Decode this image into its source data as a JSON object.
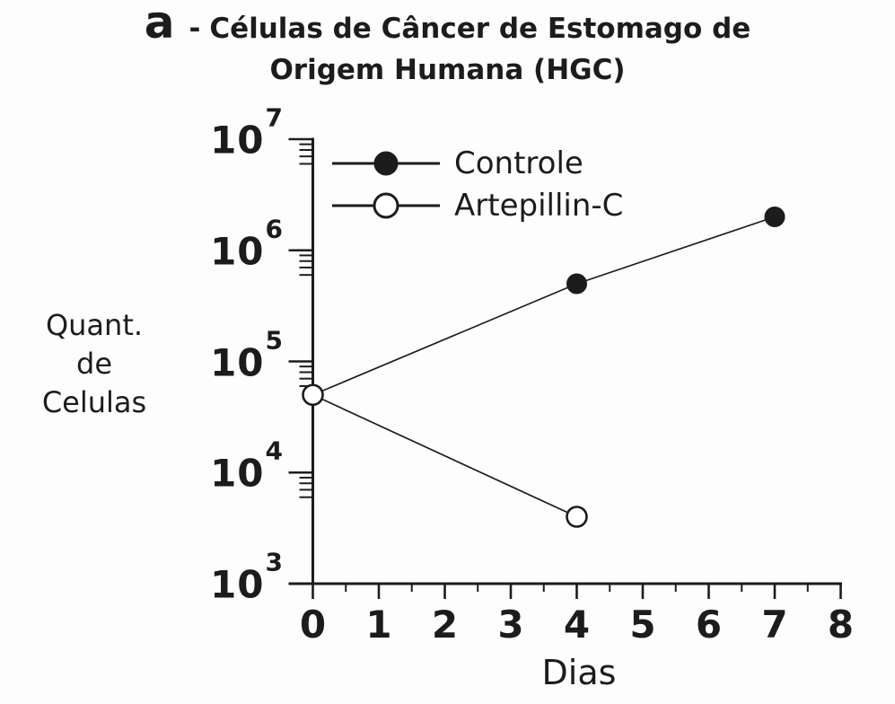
{
  "figure": {
    "panel_label": "a",
    "title_separator": "-",
    "title_line1": "Células de Câncer de Estomago de",
    "title_line2": "Origem Humana (HGC)",
    "ylabel_lines": [
      "Quant.",
      "de",
      "Celulas"
    ],
    "ink_color": "#1c1c1c",
    "background_color": "#fdfdfd"
  },
  "chart_data": {
    "type": "line",
    "title": "a - Células de Câncer de Estomago de Origem Humana (HGC)",
    "xlabel": "Dias",
    "ylabel": "Quant. de Celulas",
    "grid": false,
    "legend_position": "top-left-inside",
    "x_axis": {
      "min": 0,
      "max": 8,
      "major_ticks": [
        0,
        1,
        2,
        3,
        4,
        5,
        6,
        7,
        8
      ],
      "minor_tick_step": 0.5
    },
    "y_axis": {
      "scale": "log10",
      "base_label": "10",
      "min": 1000,
      "max": 10000000,
      "tick_exponents": [
        3,
        4,
        5,
        6,
        7
      ],
      "minor_mantissas": [
        9,
        8,
        7,
        6
      ]
    },
    "series": [
      {
        "name": "Controle",
        "marker": "filled-circle",
        "points": [
          {
            "x": 0,
            "y": 50000
          },
          {
            "x": 4,
            "y": 500000
          },
          {
            "x": 7,
            "y": 2000000
          }
        ]
      },
      {
        "name": "Artepillin-C",
        "marker": "open-circle",
        "points": [
          {
            "x": 0,
            "y": 50000
          },
          {
            "x": 4,
            "y": 4000
          }
        ]
      }
    ]
  }
}
